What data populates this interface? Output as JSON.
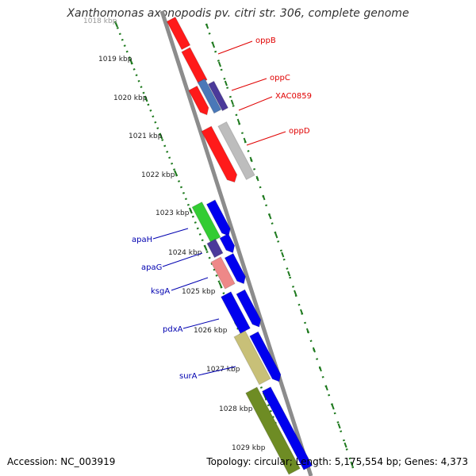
{
  "title": "Xanthomonas axonopodis pv. citri str. 306, complete genome",
  "accession": "Accession: NC_003919",
  "topology": "Topology: circular; Length: 5,175,554 bp; Genes: 4,373",
  "colors": {
    "backbone": "#8c8c8c",
    "tick_green": "#1f7a1f",
    "gene_red": "#ff0000",
    "gene_blue": "#0000ff",
    "label_red": "#e00000",
    "label_blue": "#0000b0"
  },
  "scale_labels": [
    "1018 kbp",
    "1019 kbp",
    "1020 kbp",
    "1021 kbp",
    "1022 kbp",
    "1023 kbp",
    "1024 kbp",
    "1025 kbp",
    "1026 kbp",
    "1027 kbp",
    "1028 kbp",
    "1029 kbp"
  ],
  "gene_labels": [
    {
      "text": "oppB",
      "color": "#e00000"
    },
    {
      "text": "oppC",
      "color": "#e00000"
    },
    {
      "text": "XAC0859",
      "color": "#e00000"
    },
    {
      "text": "oppD",
      "color": "#e00000"
    },
    {
      "text": "apaH",
      "color": "#0000b0"
    },
    {
      "text": "apaG",
      "color": "#0000b0"
    },
    {
      "text": "ksgA",
      "color": "#0000b0"
    },
    {
      "text": "pdxA",
      "color": "#0000b0"
    },
    {
      "text": "surA",
      "color": "#0000b0"
    }
  ]
}
